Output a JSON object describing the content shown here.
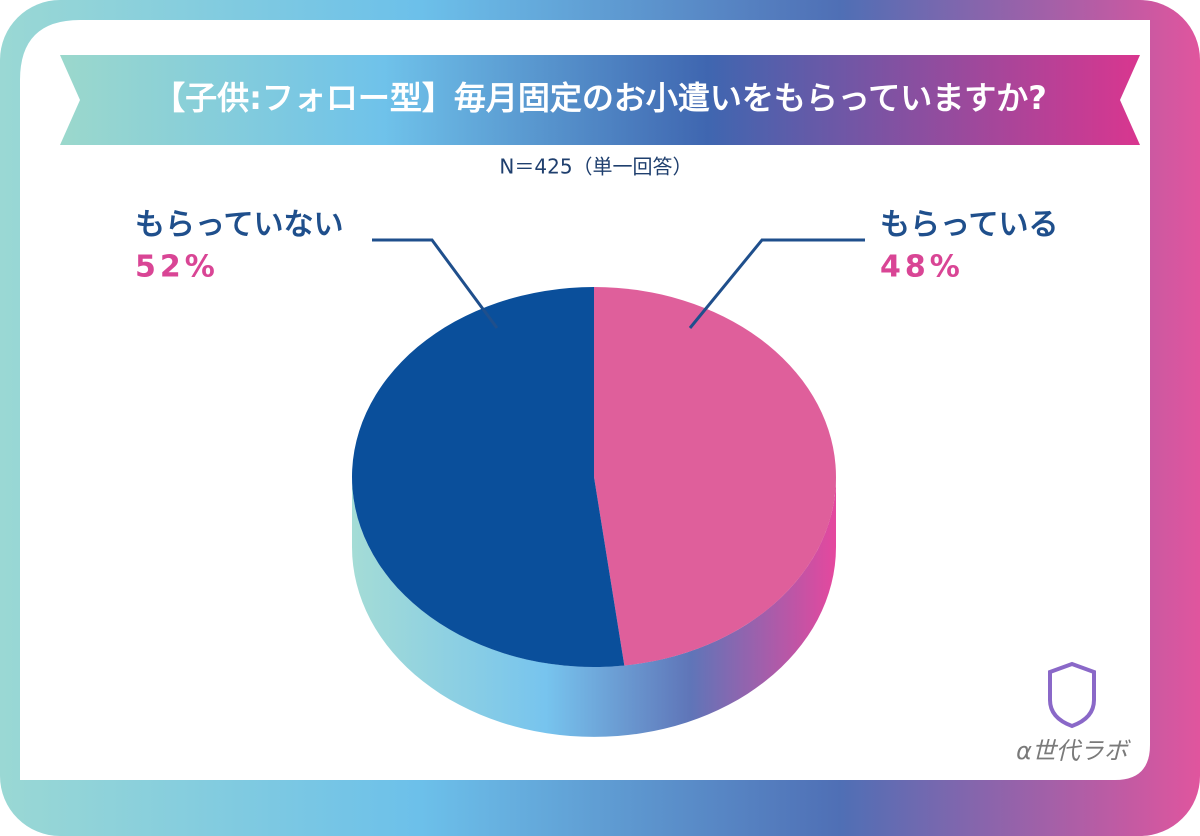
{
  "chart_data": {
    "type": "pie",
    "title": "【子供:フォロー型】毎月固定のお小遣いをもらっていますか?",
    "subtitle": "N＝425（単一回答）",
    "categories": [
      "もらっている",
      "もらっていない"
    ],
    "values": [
      48,
      52
    ],
    "value_labels": [
      "48%",
      "52%"
    ],
    "colors": [
      "#df5f9b",
      "#0a4f9b"
    ],
    "logo": "α世代ラボ"
  }
}
